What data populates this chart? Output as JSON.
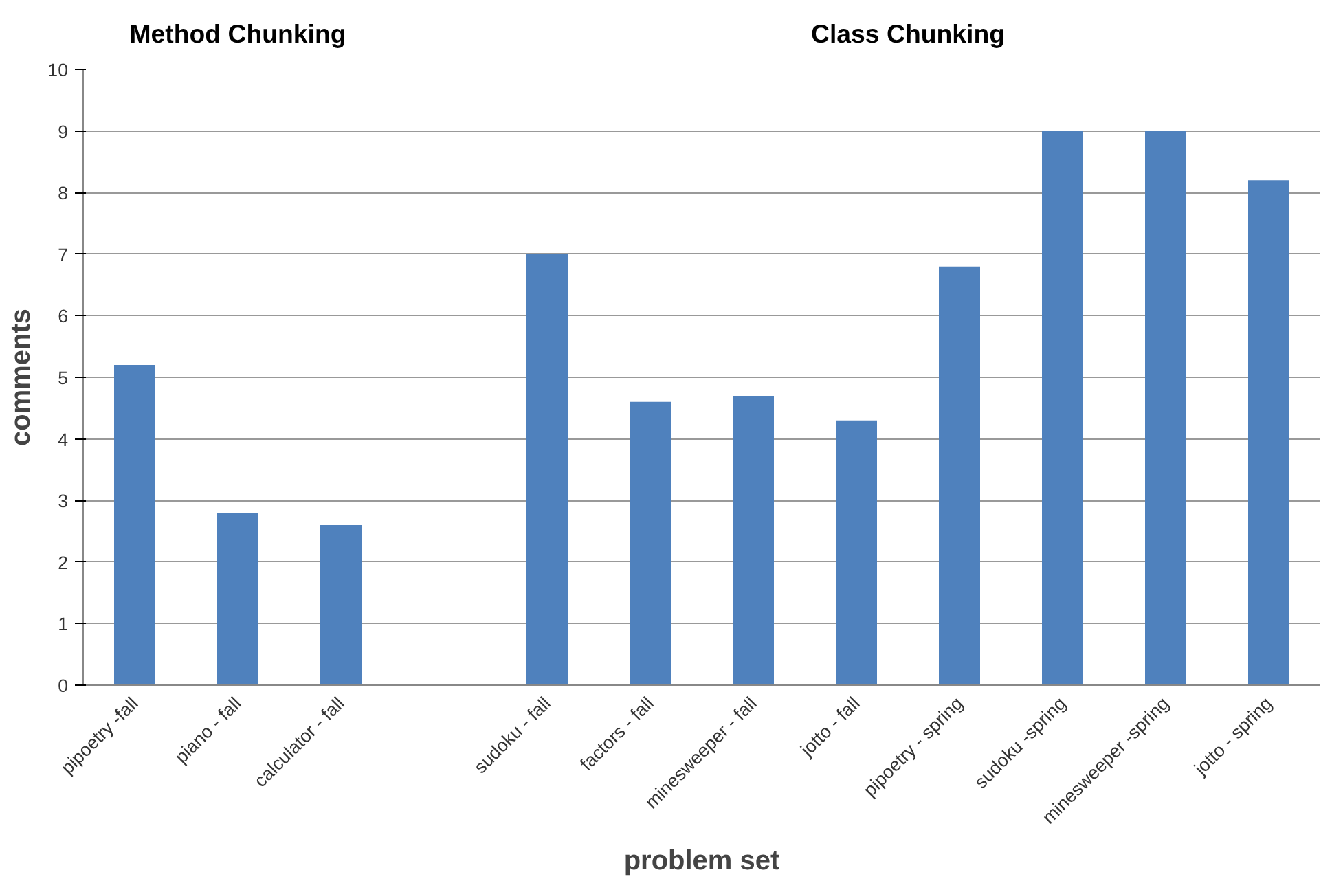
{
  "chart_data": {
    "type": "bar",
    "categories": [
      "pipoetry -fall",
      "piano - fall",
      "calculator - fall",
      null,
      "sudoku - fall",
      "factors - fall",
      "minesweeper - fall",
      "jotto - fall",
      "pipoetry - spring",
      "sudoku -spring",
      "minesweeper -spring",
      "jotto - spring"
    ],
    "values": [
      5.2,
      2.8,
      2.6,
      null,
      7.0,
      4.6,
      4.7,
      4.3,
      6.8,
      9.0,
      9.0,
      8.2
    ],
    "color": "#4f81bd",
    "xlabel": "problem set",
    "ylabel": "comments",
    "annotations": [
      "Method Chunking",
      "Class Chunking"
    ],
    "ylim": [
      0,
      10
    ],
    "yticks": [
      0,
      1,
      2,
      3,
      4,
      5,
      6,
      7,
      8,
      9,
      10
    ],
    "grid": "y"
  }
}
